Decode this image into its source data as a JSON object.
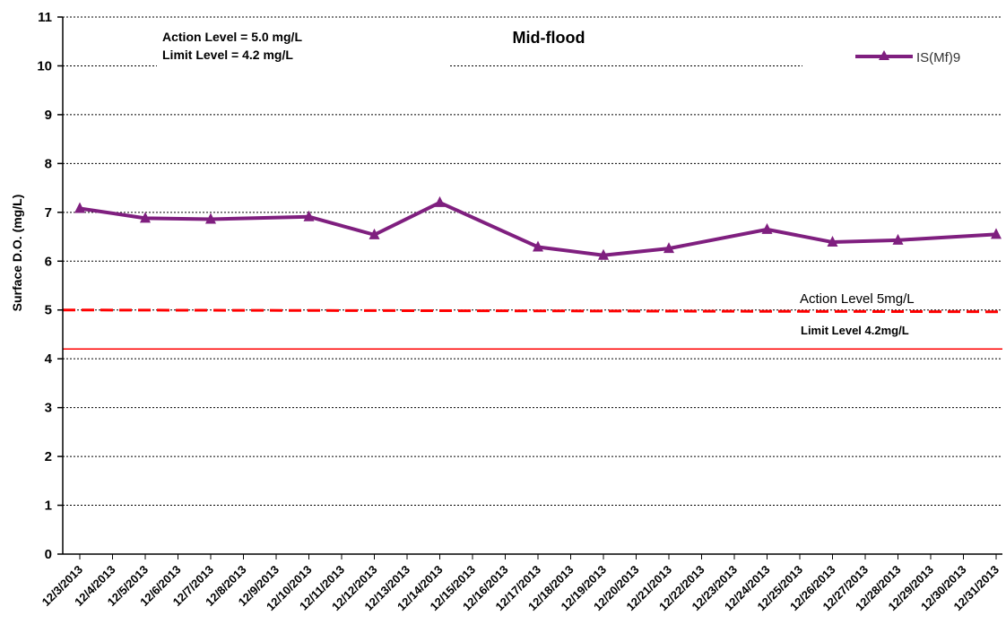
{
  "chart_data": {
    "type": "line",
    "title": "Mid-flood",
    "ylabel": "Surface D.O. (mg/L)",
    "xlabel": "",
    "ylim": [
      0,
      11
    ],
    "yticks": [
      0,
      1,
      2,
      3,
      4,
      5,
      6,
      7,
      8,
      9,
      10,
      11
    ],
    "grid": true,
    "legend_position": "top-right",
    "categories": [
      "12/3/2013",
      "12/4/2013",
      "12/5/2013",
      "12/6/2013",
      "12/7/2013",
      "12/8/2013",
      "12/9/2013",
      "12/10/2013",
      "12/11/2013",
      "12/12/2013",
      "12/13/2013",
      "12/14/2013",
      "12/15/2013",
      "12/16/2013",
      "12/17/2013",
      "12/18/2013",
      "12/19/2013",
      "12/20/2013",
      "12/21/2013",
      "12/22/2013",
      "12/23/2013",
      "12/24/2013",
      "12/25/2013",
      "12/26/2013",
      "12/27/2013",
      "12/28/2013",
      "12/29/2013",
      "12/30/2013",
      "12/31/2013"
    ],
    "series": [
      {
        "name": "IS(Mf)9",
        "color": "#7f1f7f",
        "marker": "triangle",
        "points": [
          {
            "x": "12/3/2013",
            "y": 7.08
          },
          {
            "x": "12/5/2013",
            "y": 6.88
          },
          {
            "x": "12/7/2013",
            "y": 6.86
          },
          {
            "x": "12/10/2013",
            "y": 6.91
          },
          {
            "x": "12/12/2013",
            "y": 6.54
          },
          {
            "x": "12/14/2013",
            "y": 7.2
          },
          {
            "x": "12/17/2013",
            "y": 6.29
          },
          {
            "x": "12/19/2013",
            "y": 6.12
          },
          {
            "x": "12/21/2013",
            "y": 6.26
          },
          {
            "x": "12/24/2013",
            "y": 6.65
          },
          {
            "x": "12/26/2013",
            "y": 6.39
          },
          {
            "x": "12/28/2013",
            "y": 6.43
          },
          {
            "x": "12/31/2013",
            "y": 6.55
          }
        ]
      }
    ],
    "reference_lines": [
      {
        "label": "Action Level 5mg/L",
        "value": 5.0,
        "style": "dashed",
        "color": "#ff0000"
      },
      {
        "label": "Limit Level 4.2mg/L",
        "value": 4.2,
        "style": "solid",
        "color": "#ff0000"
      }
    ],
    "annotations": [
      "Action Level = 5.0 mg/L",
      "Limit Level = 4.2 mg/L"
    ]
  }
}
